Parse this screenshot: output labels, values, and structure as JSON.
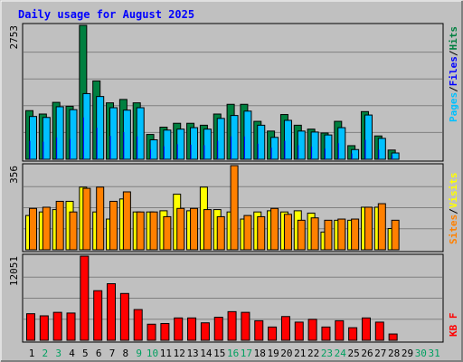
{
  "title": "Daily usage for August 2025",
  "colors": {
    "background": "#c0c0c0",
    "hits": "#008040",
    "files": "#0000ff",
    "pages": "#00c0ff",
    "sites": "#ff8000",
    "visits": "#ffff00",
    "kbytes": "#ff0000",
    "weekend": "#00a060",
    "title": "#0000ff",
    "axis_text": "#000000"
  },
  "chart_data": [
    {
      "type": "bar",
      "name": "hits-files-pages",
      "ymax_label": "2753",
      "ylim": [
        0,
        2753
      ],
      "legend": [
        {
          "key": "pages",
          "label": "Pages"
        },
        {
          "key": "sep1",
          "label": "/"
        },
        {
          "key": "files",
          "label": "Files"
        },
        {
          "key": "sep2",
          "label": "/"
        },
        {
          "key": "hits",
          "label": "Hits"
        }
      ],
      "categories": [
        "1",
        "2",
        "3",
        "4",
        "5",
        "6",
        "7",
        "8",
        "9",
        "10",
        "11",
        "12",
        "13",
        "14",
        "15",
        "16",
        "17",
        "18",
        "19",
        "20",
        "21",
        "22",
        "23",
        "24",
        "25",
        "26",
        "27",
        "28",
        "29",
        "30",
        "31"
      ],
      "series": [
        {
          "key": "hits",
          "name": "Hits",
          "values": [
            1000,
            930,
            1170,
            1090,
            2753,
            1610,
            1160,
            1230,
            1160,
            510,
            660,
            740,
            740,
            700,
            930,
            1130,
            1130,
            780,
            580,
            920,
            700,
            620,
            540,
            780,
            280,
            980,
            480,
            190,
            0,
            0,
            0
          ]
        },
        {
          "key": "files",
          "name": "Files",
          "values": [
            380,
            360,
            450,
            420,
            860,
            650,
            480,
            560,
            470,
            200,
            270,
            310,
            300,
            290,
            380,
            470,
            470,
            320,
            240,
            380,
            290,
            260,
            220,
            330,
            120,
            400,
            200,
            80,
            0,
            0,
            0
          ]
        },
        {
          "key": "pages",
          "name": "Pages",
          "values": [
            880,
            860,
            1080,
            1020,
            1350,
            1290,
            1060,
            1010,
            1060,
            400,
            600,
            620,
            650,
            620,
            840,
            900,
            990,
            700,
            450,
            800,
            580,
            560,
            500,
            650,
            200,
            910,
            430,
            130,
            0,
            0,
            0
          ]
        }
      ]
    },
    {
      "type": "bar",
      "name": "visits-sites",
      "ymax_label": "356",
      "ylim": [
        0,
        356
      ],
      "legend": [
        {
          "key": "sites",
          "label": "Sites"
        },
        {
          "key": "sep1",
          "label": "/"
        },
        {
          "key": "visits",
          "label": "Visits"
        }
      ],
      "categories": [
        "1",
        "2",
        "3",
        "4",
        "5",
        "6",
        "7",
        "8",
        "9",
        "10",
        "11",
        "12",
        "13",
        "14",
        "15",
        "16",
        "17",
        "18",
        "19",
        "20",
        "21",
        "22",
        "23",
        "24",
        "25",
        "26",
        "27",
        "28",
        "29",
        "30",
        "31"
      ],
      "series": [
        {
          "key": "visits",
          "name": "Visits",
          "values": [
            145,
            160,
            170,
            205,
            265,
            160,
            130,
            215,
            160,
            160,
            165,
            235,
            165,
            265,
            170,
            160,
            130,
            160,
            165,
            160,
            165,
            155,
            75,
            125,
            125,
            180,
            180,
            90,
            0,
            0,
            0
          ]
        },
        {
          "key": "sites",
          "name": "Sites",
          "values": [
            175,
            180,
            205,
            160,
            260,
            265,
            205,
            245,
            160,
            160,
            140,
            175,
            175,
            170,
            140,
            356,
            145,
            140,
            175,
            150,
            125,
            135,
            125,
            130,
            130,
            180,
            195,
            125,
            0,
            0,
            0
          ]
        }
      ]
    },
    {
      "type": "bar",
      "name": "kbytes",
      "ymax_label": "12051",
      "ylim": [
        0,
        12051
      ],
      "legend": [
        {
          "key": "kbytes",
          "label": "KB F"
        }
      ],
      "categories": [
        "1",
        "2",
        "3",
        "4",
        "5",
        "6",
        "7",
        "8",
        "9",
        "10",
        "11",
        "12",
        "13",
        "14",
        "15",
        "16",
        "17",
        "18",
        "19",
        "20",
        "21",
        "22",
        "23",
        "24",
        "25",
        "26",
        "27",
        "28",
        "29",
        "30",
        "31"
      ],
      "series": [
        {
          "key": "kbytes",
          "name": "KB F",
          "values": [
            3800,
            3500,
            4000,
            3900,
            12051,
            7100,
            8100,
            6700,
            4400,
            2300,
            2400,
            3200,
            3200,
            2500,
            3300,
            4100,
            4000,
            2800,
            1900,
            3400,
            2600,
            3000,
            1900,
            2800,
            1800,
            3200,
            2600,
            900,
            0,
            0,
            0
          ]
        }
      ]
    }
  ],
  "days": [
    {
      "label": "1",
      "weekend": false
    },
    {
      "label": "2",
      "weekend": true
    },
    {
      "label": "3",
      "weekend": true
    },
    {
      "label": "4",
      "weekend": false
    },
    {
      "label": "5",
      "weekend": false
    },
    {
      "label": "6",
      "weekend": false
    },
    {
      "label": "7",
      "weekend": false
    },
    {
      "label": "8",
      "weekend": false
    },
    {
      "label": "9",
      "weekend": true
    },
    {
      "label": "10",
      "weekend": true
    },
    {
      "label": "11",
      "weekend": false
    },
    {
      "label": "12",
      "weekend": false
    },
    {
      "label": "13",
      "weekend": false
    },
    {
      "label": "14",
      "weekend": false
    },
    {
      "label": "15",
      "weekend": false
    },
    {
      "label": "16",
      "weekend": true
    },
    {
      "label": "17",
      "weekend": true
    },
    {
      "label": "18",
      "weekend": false
    },
    {
      "label": "19",
      "weekend": false
    },
    {
      "label": "20",
      "weekend": false
    },
    {
      "label": "21",
      "weekend": false
    },
    {
      "label": "22",
      "weekend": false
    },
    {
      "label": "23",
      "weekend": true
    },
    {
      "label": "24",
      "weekend": true
    },
    {
      "label": "25",
      "weekend": false
    },
    {
      "label": "26",
      "weekend": false
    },
    {
      "label": "27",
      "weekend": false
    },
    {
      "label": "28",
      "weekend": false
    },
    {
      "label": "29",
      "weekend": false
    },
    {
      "label": "30",
      "weekend": true
    },
    {
      "label": "31",
      "weekend": true
    }
  ]
}
